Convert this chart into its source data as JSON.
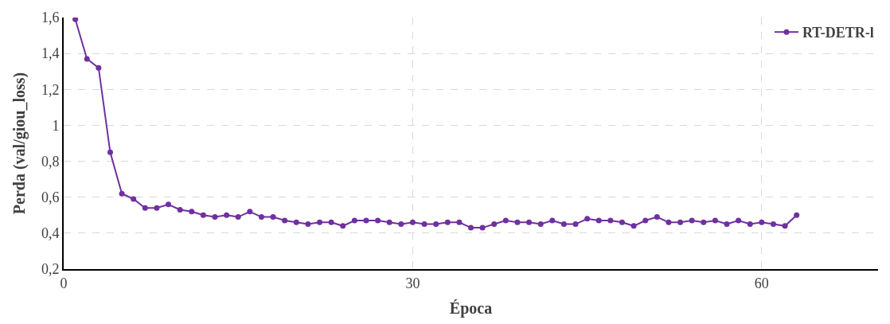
{
  "chart_data": {
    "type": "line",
    "xlabel": "Época",
    "ylabel": "Perda (val/giou_loss)",
    "x": [
      1,
      2,
      3,
      4,
      5,
      6,
      7,
      8,
      9,
      10,
      11,
      12,
      13,
      14,
      15,
      16,
      17,
      18,
      19,
      20,
      21,
      22,
      23,
      24,
      25,
      26,
      27,
      28,
      29,
      30,
      31,
      32,
      33,
      34,
      35,
      36,
      37,
      38,
      39,
      40,
      41,
      42,
      43,
      44,
      45,
      46,
      47,
      48,
      49,
      50,
      51,
      52,
      53,
      54,
      55,
      56,
      57,
      58,
      59,
      60,
      61,
      62,
      63
    ],
    "series": [
      {
        "name": "RT-DETR-l",
        "color": "#7030a0",
        "values": [
          1.59,
          1.37,
          1.32,
          0.85,
          0.62,
          0.59,
          0.54,
          0.54,
          0.56,
          0.53,
          0.52,
          0.5,
          0.49,
          0.5,
          0.49,
          0.52,
          0.49,
          0.49,
          0.47,
          0.46,
          0.45,
          0.46,
          0.46,
          0.44,
          0.47,
          0.47,
          0.47,
          0.46,
          0.45,
          0.46,
          0.45,
          0.45,
          0.46,
          0.46,
          0.43,
          0.43,
          0.45,
          0.47,
          0.46,
          0.46,
          0.45,
          0.47,
          0.45,
          0.45,
          0.48,
          0.47,
          0.47,
          0.46,
          0.44,
          0.47,
          0.49,
          0.46,
          0.46,
          0.47,
          0.46,
          0.47,
          0.45,
          0.47,
          0.45,
          0.46,
          0.45,
          0.44,
          0.5
        ]
      }
    ],
    "xlim": [
      0,
      70
    ],
    "xticks": [
      0,
      30,
      60
    ],
    "ylim": [
      0.2,
      1.6
    ],
    "yticks": [
      {
        "value": 0.2,
        "label": "0,2"
      },
      {
        "value": 0.4,
        "label": "0,4"
      },
      {
        "value": 0.6,
        "label": "0,6"
      },
      {
        "value": 0.8,
        "label": "0,8"
      },
      1,
      {
        "value": 1.2,
        "label": "1,2"
      },
      {
        "value": 1.4,
        "label": "1,4"
      },
      {
        "value": 1.6,
        "label": "1,6"
      }
    ],
    "grid": true,
    "legend": "top right",
    "marker": "circle",
    "line_style": "solid"
  }
}
